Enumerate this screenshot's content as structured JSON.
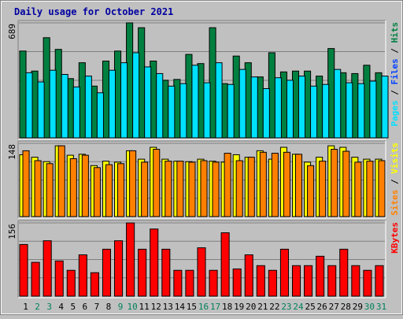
{
  "chart_data": {
    "type": "bar",
    "title": "Daily usage for October 2021",
    "x": [
      "1",
      "2",
      "3",
      "4",
      "5",
      "6",
      "7",
      "8",
      "9",
      "10",
      "11",
      "12",
      "13",
      "14",
      "15",
      "16",
      "17",
      "18",
      "19",
      "20",
      "21",
      "22",
      "23",
      "24",
      "25",
      "26",
      "27",
      "28",
      "29",
      "30",
      "31"
    ],
    "weekend_days": [
      "2",
      "3",
      "9",
      "10",
      "16",
      "17",
      "23",
      "24",
      "30",
      "31"
    ],
    "panels": [
      {
        "name": "hits-files-pages",
        "ymax_label": "689",
        "ymax": 689,
        "legend": [
          {
            "text": "Pages",
            "color": "#00e0ff"
          },
          {
            "text": " / ",
            "color": "#000000"
          },
          {
            "text": "Files",
            "color": "#0040ff"
          },
          {
            "text": " / ",
            "color": "#000000"
          },
          {
            "text": "Hits",
            "color": "#008040"
          }
        ],
        "series": [
          {
            "name": "Hits",
            "color": "#008040",
            "values": [
              520,
              400,
              600,
              530,
              355,
              450,
              310,
              460,
              520,
              689,
              660,
              460,
              345,
              350,
              500,
              445,
              660,
              325,
              490,
              450,
              365,
              510,
              395,
              400,
              400,
              370,
              535,
              390,
              385,
              435,
              390
            ]
          },
          {
            "name": "Files",
            "color": "#0040ff",
            "values": [
              0,
              0,
              0,
              0,
              0,
              0,
              0,
              0,
              0,
              0,
              0,
              0,
              0,
              0,
              0,
              0,
              0,
              0,
              0,
              0,
              0,
              0,
              0,
              0,
              0,
              0,
              0,
              0,
              0,
              0,
              0
            ]
          },
          {
            "name": "Pages",
            "color": "#00e0ff",
            "values": [
              390,
              335,
              405,
              380,
              305,
              370,
              270,
              405,
              450,
              510,
              425,
              385,
              310,
              325,
              435,
              330,
              450,
              320,
              410,
              365,
              295,
              360,
              345,
              370,
              310,
              320,
              410,
              330,
              325,
              340,
              370
            ]
          }
        ]
      },
      {
        "name": "visits-sites",
        "ymax_label": "148",
        "ymax": 148,
        "legend": [
          {
            "text": "Sites",
            "color": "#ff8000"
          },
          {
            "text": " / ",
            "color": "#000000"
          },
          {
            "text": "Visits",
            "color": "#ffff00"
          }
        ],
        "series": [
          {
            "name": "Visits",
            "color": "#ffff00",
            "values": [
              125,
              120,
              111,
              143,
              124,
              126,
              103,
              112,
              110,
              133,
              116,
              140,
              116,
              112,
              111,
              116,
              112,
              110,
              125,
              120,
              133,
              116,
              140,
              126,
              110,
              120,
              143,
              140,
              120,
              116,
              116
            ]
          },
          {
            "name": "Sites",
            "color": "#ff8000",
            "values": [
              133,
              113,
              107,
              143,
              117,
              124,
              99,
              105,
              107,
              133,
              110,
              136,
              112,
              112,
              110,
              113,
              110,
              128,
              113,
              120,
              130,
              128,
              130,
              126,
              103,
              112,
              136,
              132,
              110,
              112,
              113
            ]
          }
        ]
      },
      {
        "name": "kbytes",
        "ymax_label": "156",
        "ymax": 156,
        "legend": [
          {
            "text": "KBytes",
            "color": "#ff0000"
          }
        ],
        "series": [
          {
            "name": "KBytes",
            "color": "#ff0000",
            "values": [
              110,
              72,
              118,
              75,
              55,
              88,
              50,
              100,
              118,
              156,
              100,
              143,
              100,
              55,
              55,
              103,
              55,
              135,
              58,
              88,
              65,
              55,
              100,
              65,
              65,
              85,
              65,
              100,
              65,
              55,
              65
            ]
          }
        ]
      }
    ]
  }
}
